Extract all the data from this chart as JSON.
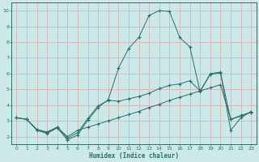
{
  "xlabel": "Humidex (Indice chaleur)",
  "bg_color": "#cce8e8",
  "grid_color": "#d4b4b4",
  "line_color": "#2a7068",
  "xlim": [
    -0.5,
    23.5
  ],
  "ylim": [
    1.5,
    10.5
  ],
  "xticks": [
    0,
    1,
    2,
    3,
    4,
    5,
    6,
    7,
    8,
    9,
    10,
    11,
    12,
    13,
    14,
    15,
    16,
    17,
    18,
    19,
    20,
    21,
    22,
    23
  ],
  "yticks": [
    2,
    3,
    4,
    5,
    6,
    7,
    8,
    9,
    10
  ],
  "line1_x": [
    0,
    1,
    2,
    3,
    4,
    5,
    6,
    7,
    8,
    9,
    10,
    11,
    12,
    13,
    14,
    15,
    16,
    17,
    18,
    19,
    20,
    21,
    22,
    23
  ],
  "line1_y": [
    3.2,
    3.1,
    2.4,
    2.2,
    2.55,
    1.8,
    2.1,
    3.05,
    3.85,
    4.35,
    6.35,
    7.6,
    8.3,
    9.7,
    10.0,
    9.95,
    8.3,
    7.7,
    4.85,
    6.0,
    6.1,
    2.4,
    3.2,
    3.6
  ],
  "line2_x": [
    0,
    1,
    2,
    3,
    4,
    5,
    6,
    7,
    8,
    9,
    10,
    11,
    12,
    13,
    14,
    15,
    16,
    17,
    18,
    19,
    20,
    21,
    22,
    23
  ],
  "line2_y": [
    3.2,
    3.1,
    2.45,
    2.25,
    2.6,
    1.9,
    2.25,
    3.15,
    3.95,
    4.3,
    4.25,
    4.4,
    4.55,
    4.75,
    5.05,
    5.25,
    5.35,
    5.55,
    4.9,
    5.95,
    6.05,
    3.1,
    3.35,
    3.55
  ],
  "line3_x": [
    0,
    1,
    2,
    3,
    4,
    5,
    6,
    7,
    8,
    9,
    10,
    11,
    12,
    13,
    14,
    15,
    16,
    17,
    18,
    19,
    20,
    21,
    22,
    23
  ],
  "line3_y": [
    3.2,
    3.1,
    2.45,
    2.3,
    2.6,
    2.0,
    2.4,
    2.6,
    2.8,
    3.0,
    3.2,
    3.4,
    3.6,
    3.85,
    4.05,
    4.3,
    4.5,
    4.7,
    4.9,
    5.1,
    5.3,
    3.1,
    3.3,
    3.55
  ]
}
